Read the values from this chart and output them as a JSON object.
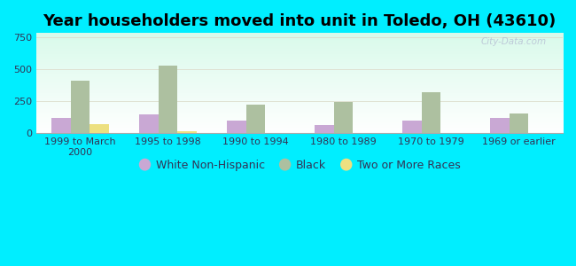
{
  "title": "Year householders moved into unit in Toledo, OH (43610)",
  "categories": [
    "1999 to March\n2000",
    "1995 to 1998",
    "1990 to 1994",
    "1980 to 1989",
    "1970 to 1979",
    "1969 or earlier"
  ],
  "series": {
    "White Non-Hispanic": [
      120,
      150,
      100,
      65,
      100,
      120
    ],
    "Black": [
      410,
      530,
      220,
      245,
      320,
      155
    ],
    "Two or More Races": [
      75,
      15,
      0,
      0,
      0,
      0
    ]
  },
  "colors": {
    "White Non-Hispanic": "#c9a8d4",
    "Black": "#adc0a0",
    "Two or More Races": "#ede080"
  },
  "ylim": [
    0,
    780
  ],
  "yticks": [
    0,
    250,
    500,
    750
  ],
  "background_color": "#00eeff",
  "bar_width": 0.22,
  "title_fontsize": 13,
  "legend_fontsize": 9,
  "tick_fontsize": 8,
  "watermark": "City-Data.com"
}
